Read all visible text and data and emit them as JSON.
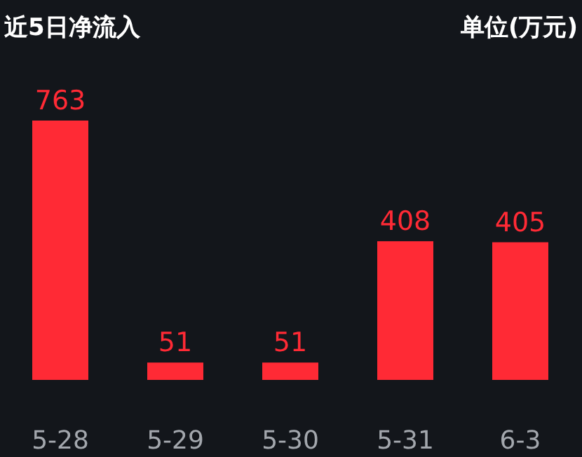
{
  "chart_data": {
    "type": "bar",
    "title": "近5日净流入",
    "annotations": [
      "单位(万元)"
    ],
    "categories": [
      "5-28",
      "5-29",
      "5-30",
      "5-31",
      "6-3"
    ],
    "values": [
      763,
      51,
      51,
      408,
      405
    ],
    "color": "#ff2a35",
    "data_labels": true
  }
}
